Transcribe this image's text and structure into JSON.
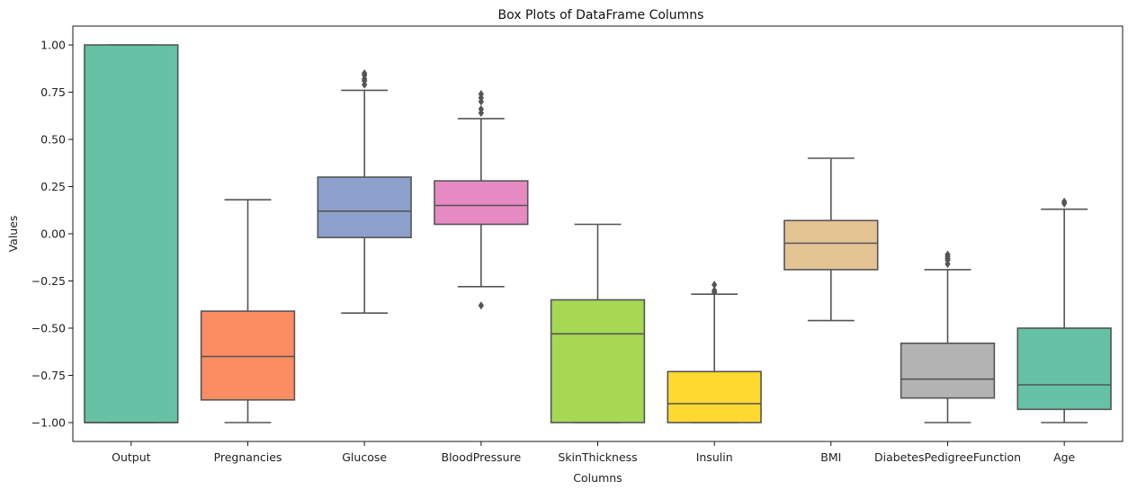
{
  "chart_data": {
    "type": "box",
    "title": "Box Plots of DataFrame Columns",
    "xlabel": "Columns",
    "ylabel": "Values",
    "ylim": [
      -1.1,
      1.1
    ],
    "yticks": [
      1.0,
      0.75,
      0.5,
      0.25,
      0.0,
      -0.25,
      -0.5,
      -0.75,
      -1.0
    ],
    "ytick_labels": [
      "1.00",
      "0.75",
      "0.50",
      "0.25",
      "0.00",
      "−0.25",
      "−0.50",
      "−0.75",
      "−1.00"
    ],
    "grid": false,
    "series": [
      {
        "name": "Output",
        "color": "#66c2a5",
        "whislo": -1.0,
        "q1": -1.0,
        "med": -1.0,
        "q3": 1.0,
        "whishi": 1.0,
        "fliers": []
      },
      {
        "name": "Pregnancies",
        "color": "#fc8d62",
        "whislo": -1.0,
        "q1": -0.88,
        "med": -0.65,
        "q3": -0.41,
        "whishi": 0.18,
        "fliers": []
      },
      {
        "name": "Glucose",
        "color": "#8da0cb",
        "whislo": -0.42,
        "q1": -0.02,
        "med": 0.12,
        "q3": 0.3,
        "whishi": 0.76,
        "fliers": [
          0.79,
          0.81,
          0.82,
          0.84,
          0.85
        ]
      },
      {
        "name": "BloodPressure",
        "color": "#e78ac3",
        "whislo": -0.28,
        "q1": 0.05,
        "med": 0.15,
        "q3": 0.28,
        "whishi": 0.61,
        "fliers": [
          -0.38,
          0.64,
          0.66,
          0.7,
          0.72,
          0.74
        ]
      },
      {
        "name": "SkinThickness",
        "color": "#a6d854",
        "whislo": -1.0,
        "q1": -1.0,
        "med": -0.53,
        "q3": -0.35,
        "whishi": 0.05,
        "fliers": []
      },
      {
        "name": "Insulin",
        "color": "#ffd92f",
        "whislo": -1.0,
        "q1": -1.0,
        "med": -0.9,
        "q3": -0.73,
        "whishi": -0.32,
        "fliers": [
          -0.31,
          -0.3,
          -0.27
        ]
      },
      {
        "name": "BMI",
        "color": "#e5c494",
        "whislo": -0.46,
        "q1": -0.19,
        "med": -0.05,
        "q3": 0.07,
        "whishi": 0.4,
        "fliers": []
      },
      {
        "name": "DiabetesPedigreeFunction",
        "color": "#b3b3b3",
        "whislo": -1.0,
        "q1": -0.87,
        "med": -0.77,
        "q3": -0.58,
        "whishi": -0.19,
        "fliers": [
          -0.16,
          -0.14,
          -0.13,
          -0.12,
          -0.11
        ]
      },
      {
        "name": "Age",
        "color": "#66c2a5",
        "whislo": -1.0,
        "q1": -0.93,
        "med": -0.8,
        "q3": -0.5,
        "whishi": 0.13,
        "fliers": [
          0.16,
          0.17
        ]
      }
    ]
  }
}
